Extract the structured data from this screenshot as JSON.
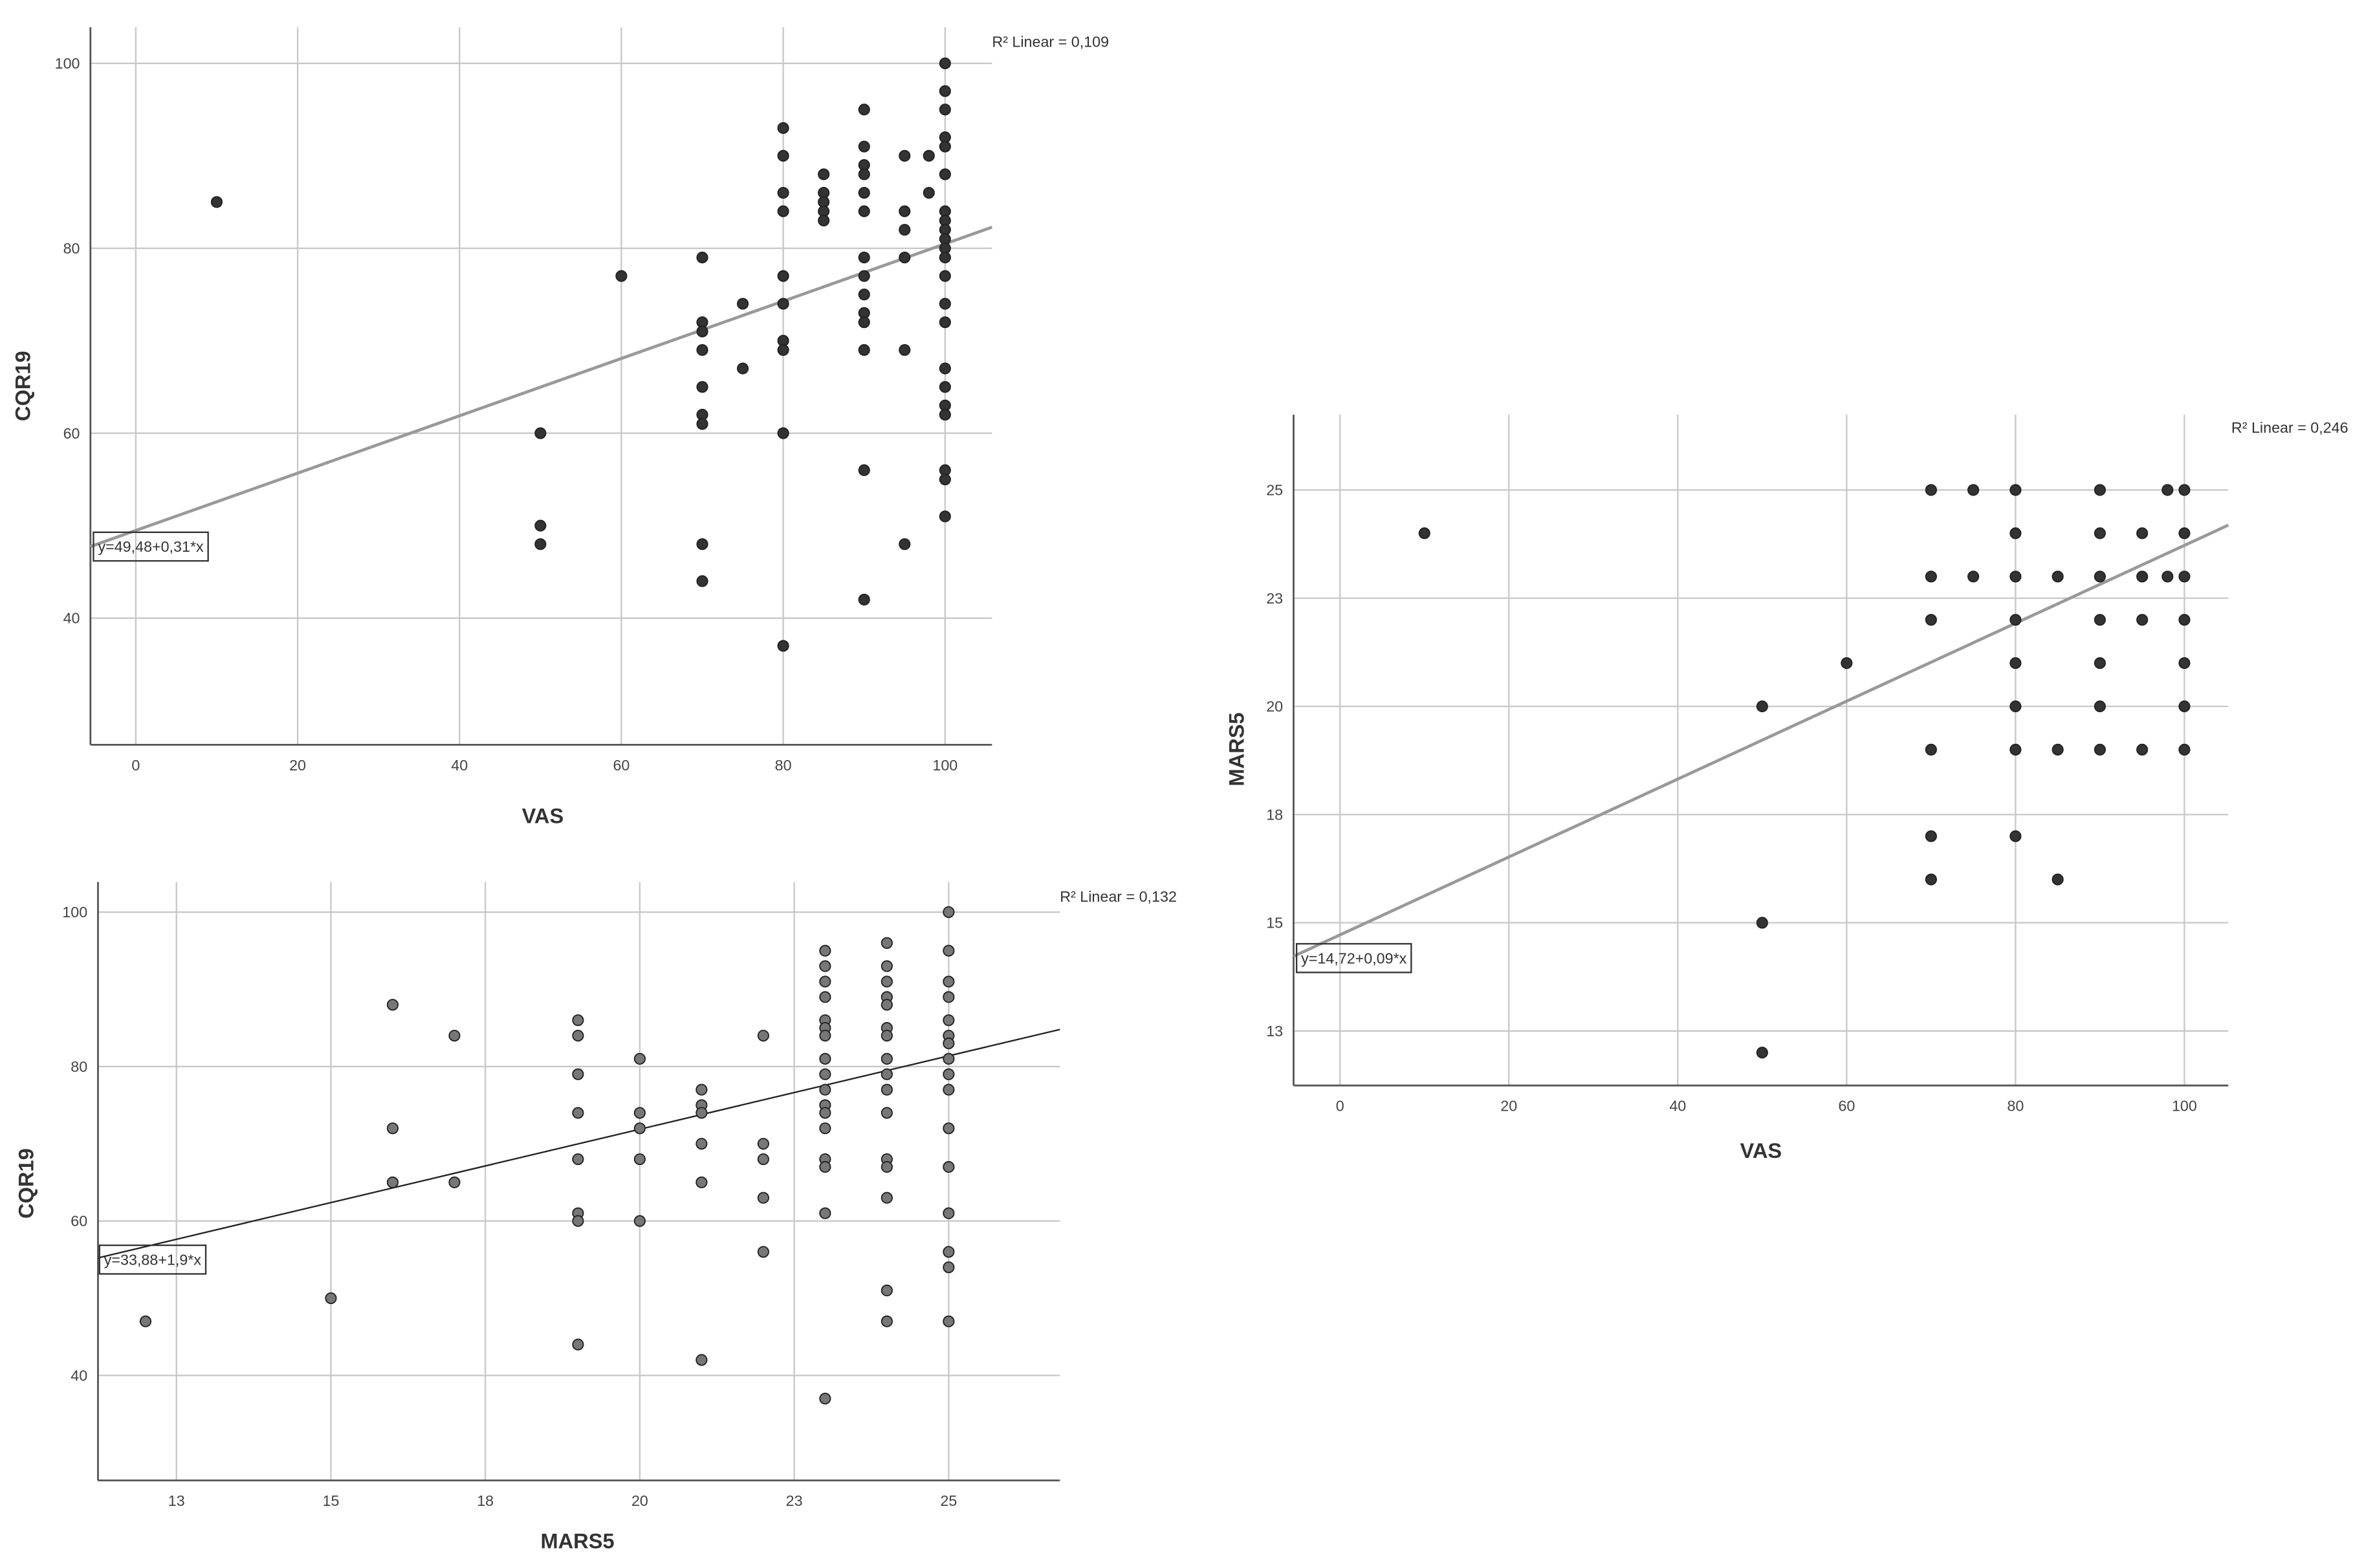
{
  "chart_data": [
    {
      "type": "scatter",
      "x_label": "VAS",
      "y_label": "CQR19",
      "color": "#333333",
      "r2_label": "R² Linear = 0,109",
      "fit_label": "y=49,48+0,31*x",
      "fit": {
        "intercept": 49.48,
        "slope": 0.31
      },
      "xlim": [
        -5.6,
        105.8
      ],
      "ylim": [
        26.3,
        103.9
      ],
      "xticks": [
        0,
        20,
        40,
        60,
        80,
        100
      ],
      "yticks": [
        40,
        60,
        80,
        100
      ],
      "grid": true,
      "x": [
        10,
        50,
        50,
        50,
        60,
        70,
        70,
        70,
        70,
        70,
        70,
        70,
        70,
        70,
        75,
        75,
        80,
        80,
        80,
        80,
        80,
        80,
        80,
        80,
        80,
        80,
        85,
        85,
        85,
        85,
        85,
        90,
        90,
        90,
        90,
        90,
        90,
        90,
        90,
        90,
        90,
        90,
        90,
        90,
        90,
        95,
        95,
        95,
        95,
        95,
        95,
        98,
        98,
        100,
        100,
        100,
        100,
        100,
        100,
        100,
        100,
        100,
        100,
        100,
        100,
        100,
        100,
        100,
        100,
        100,
        100,
        100,
        100,
        100,
        100
      ],
      "values": [
        85,
        60,
        50,
        48,
        77,
        79,
        72,
        71,
        69,
        65,
        62,
        61,
        48,
        44,
        74,
        67,
        93,
        90,
        86,
        84,
        77,
        74,
        70,
        69,
        60,
        37,
        88,
        86,
        85,
        84,
        83,
        95,
        91,
        89,
        88,
        86,
        84,
        79,
        77,
        75,
        73,
        72,
        69,
        56,
        42,
        90,
        84,
        82,
        79,
        69,
        48,
        90,
        86,
        100,
        97,
        95,
        92,
        91,
        88,
        84,
        83,
        82,
        81,
        80,
        79,
        77,
        74,
        72,
        67,
        65,
        63,
        62,
        56,
        55,
        51
      ]
    },
    {
      "type": "scatter",
      "x_label": "VAS",
      "y_label": "MARS5",
      "color": "#333333",
      "r2_label": "R² Linear = 0,246",
      "fit_label": "y=14,72+0,09*x",
      "fit": {
        "intercept": 14.72,
        "slope": 0.09
      },
      "xlim": [
        -5.5,
        105.2
      ],
      "ylim": [
        11.24,
        26.74
      ],
      "xticks": [
        0,
        20,
        40,
        60,
        80,
        100
      ],
      "yticks": [
        {
          "value": 12.5,
          "label": "13"
        },
        15,
        {
          "value": 17.5,
          "label": "18"
        },
        20,
        {
          "value": 22.5,
          "label": "23"
        },
        25
      ],
      "grid": true,
      "x": [
        10,
        50,
        50,
        50,
        60,
        70,
        70,
        70,
        70,
        70,
        70,
        75,
        75,
        80,
        80,
        80,
        80,
        80,
        80,
        80,
        80,
        85,
        85,
        85,
        90,
        90,
        90,
        90,
        90,
        90,
        90,
        95,
        95,
        95,
        95,
        98,
        98,
        100,
        100,
        100,
        100,
        100,
        100,
        100
      ],
      "values": [
        24,
        20,
        15,
        12,
        21,
        25,
        23,
        22,
        19,
        17,
        16,
        25,
        23,
        25,
        24,
        23,
        22,
        21,
        20,
        19,
        17,
        23,
        19,
        16,
        25,
        24,
        23,
        22,
        21,
        20,
        19,
        24,
        23,
        22,
        19,
        25,
        23,
        25,
        24,
        23,
        22,
        21,
        20,
        19
      ]
    },
    {
      "type": "scatter",
      "x_label": "MARS5",
      "y_label": "CQR19",
      "color": "#777777",
      "r2_label": "R² Linear = 0,132",
      "fit_label": "y=33,88+1,9*x",
      "fit": {
        "intercept": 33.88,
        "slope": 1.9
      },
      "xlim": [
        11.23,
        26.8
      ],
      "ylim": [
        26.4,
        103.9
      ],
      "xticks": [
        {
          "value": 12.5,
          "label": "13"
        },
        15,
        {
          "value": 17.5,
          "label": "18"
        },
        20,
        {
          "value": 22.5,
          "label": "23"
        },
        25
      ],
      "yticks": [
        40,
        60,
        80,
        100
      ],
      "grid": true,
      "x": [
        12,
        15,
        16,
        16,
        16,
        17,
        17,
        19,
        19,
        19,
        19,
        19,
        19,
        19,
        19,
        20,
        20,
        20,
        20,
        20,
        21,
        21,
        21,
        21,
        21,
        21,
        22,
        22,
        22,
        22,
        22,
        23,
        23,
        23,
        23,
        23,
        23,
        23,
        23,
        23,
        23,
        23,
        23,
        23,
        23,
        23,
        23,
        23,
        24,
        24,
        24,
        24,
        24,
        24,
        24,
        24,
        24,
        24,
        24,
        24,
        24,
        24,
        24,
        24,
        25,
        25,
        25,
        25,
        25,
        25,
        25,
        25,
        25,
        25,
        25,
        25,
        25,
        25,
        25,
        25
      ],
      "values": [
        47,
        50,
        88,
        72,
        65,
        84,
        65,
        86,
        84,
        79,
        74,
        68,
        61,
        60,
        44,
        81,
        74,
        72,
        68,
        60,
        77,
        75,
        74,
        70,
        65,
        42,
        84,
        70,
        68,
        63,
        56,
        95,
        93,
        91,
        89,
        86,
        85,
        84,
        81,
        79,
        77,
        75,
        74,
        72,
        68,
        67,
        61,
        37,
        96,
        93,
        91,
        89,
        88,
        85,
        84,
        81,
        79,
        77,
        74,
        68,
        67,
        63,
        51,
        47,
        100,
        95,
        91,
        89,
        86,
        84,
        83,
        81,
        79,
        77,
        72,
        67,
        61,
        56,
        54,
        47
      ]
    }
  ]
}
